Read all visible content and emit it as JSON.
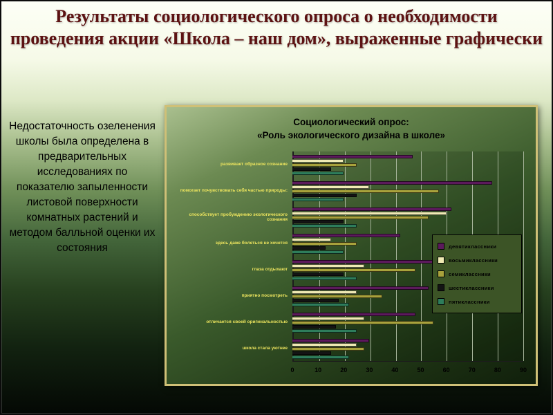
{
  "title": "Результаты социологического опроса о необходимости проведения акции «Школа – наш дом», выраженные графически",
  "left_text": "Недостаточность озеленения школы была определена в предварительных исследованиях по показателю запыленности листовой поверхности комнатных растений и методом балльной оценки их состояния",
  "colors": {
    "title_text": "#5c1212",
    "panel_border": "#cfc077",
    "category_label": "#ece45e",
    "grid_line": "#a7b59b"
  },
  "chart_data": {
    "type": "bar",
    "orientation": "horizontal",
    "title_line1": "Социологический опрос:",
    "title_line2": "«Роль экологического дизайна в школе»",
    "categories": [
      "развивает образное сознание",
      "помогает почувствовать себя частью природы:",
      "способствует пробуждению экологического сознания",
      "здесь даже болеться не хочется",
      "глаза отдыхают",
      "приятно посмотреть",
      "отличается своей оригинальностью",
      "школа стала уютнее"
    ],
    "series": [
      {
        "name": "девятиклассники",
        "color": "#5c1a5c",
        "values": [
          47,
          78,
          62,
          42,
          55,
          53,
          48,
          30
        ]
      },
      {
        "name": "восьмиклассники",
        "color": "#efeab4",
        "values": [
          20,
          30,
          60,
          15,
          28,
          25,
          28,
          25
        ]
      },
      {
        "name": "семиклассники",
        "color": "#a8a23c",
        "values": [
          25,
          57,
          53,
          25,
          48,
          35,
          55,
          28
        ]
      },
      {
        "name": "шестиклассники",
        "color": "#141414",
        "values": [
          15,
          25,
          20,
          13,
          20,
          18,
          17,
          15
        ]
      },
      {
        "name": "пятиклассники",
        "color": "#2e7d5b",
        "values": [
          20,
          20,
          25,
          20,
          25,
          22,
          25,
          22
        ]
      }
    ],
    "x_ticks": [
      0,
      10,
      20,
      30,
      40,
      50,
      60,
      70,
      80,
      90
    ],
    "xlim": [
      0,
      90
    ],
    "grid": true,
    "legend_position": "right-overlay"
  }
}
